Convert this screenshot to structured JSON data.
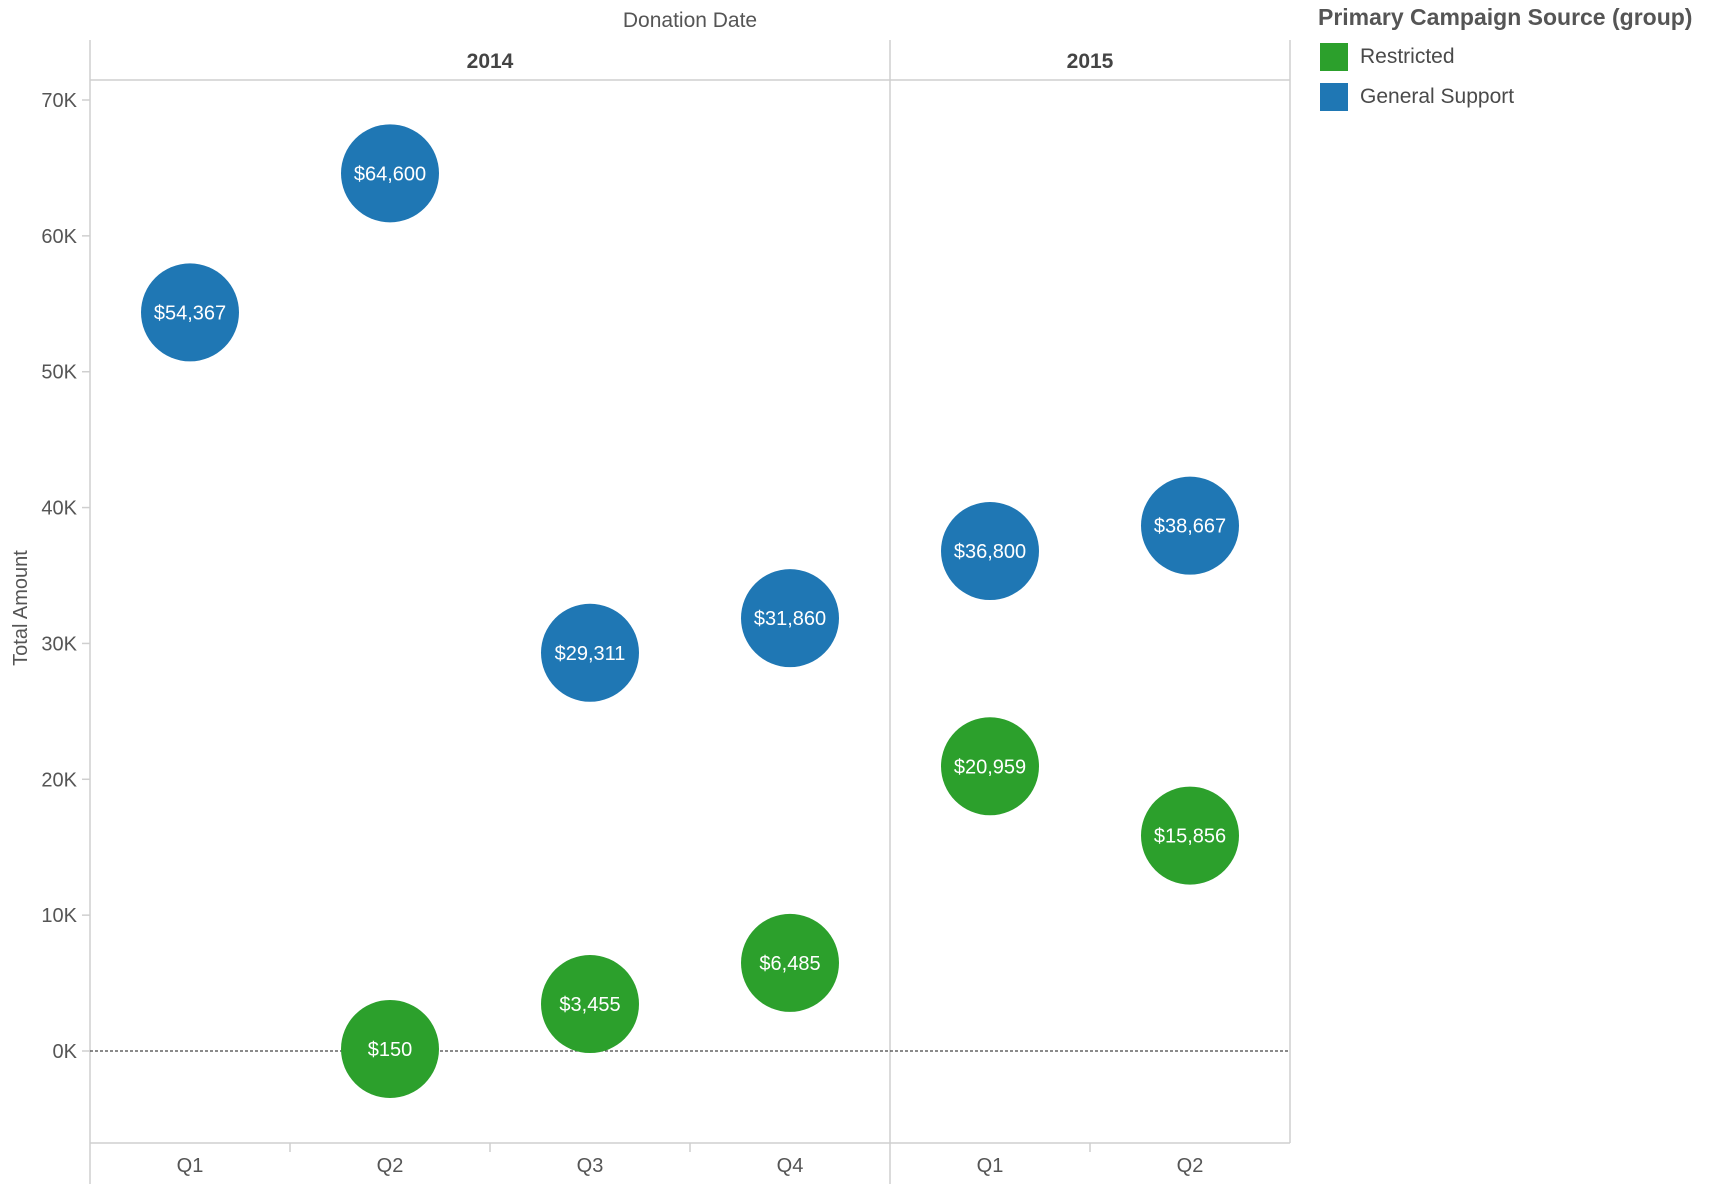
{
  "chart_data": {
    "type": "scatter",
    "title": "Donation Date",
    "xlabel": "",
    "ylabel": "Total Amount",
    "ylim": [
      -7000,
      73000
    ],
    "y_ticks": [
      "70K",
      "60K",
      "50K",
      "40K",
      "30K",
      "20K",
      "10K",
      "0K"
    ],
    "y_tick_values": [
      70000,
      60000,
      50000,
      40000,
      30000,
      20000,
      10000,
      0
    ],
    "groups": [
      {
        "label": "2014",
        "categories": [
          "Q1",
          "Q2",
          "Q3",
          "Q4"
        ]
      },
      {
        "label": "2015",
        "categories": [
          "Q1",
          "Q2"
        ]
      }
    ],
    "grid": false,
    "reference_line": 0,
    "legend": {
      "title": "Primary Campaign Source (group)",
      "placement": "top-right",
      "entries": [
        {
          "name": "Restricted",
          "color": "#2ca02c"
        },
        {
          "name": "General Support",
          "color": "#1f77b4"
        }
      ]
    },
    "series": [
      {
        "name": "General Support",
        "color": "#1f77b4",
        "points": [
          {
            "group": 0,
            "cat": 0,
            "value": 54367,
            "label": "$54,367"
          },
          {
            "group": 0,
            "cat": 1,
            "value": 64600,
            "label": "$64,600"
          },
          {
            "group": 0,
            "cat": 2,
            "value": 29311,
            "label": "$29,311"
          },
          {
            "group": 0,
            "cat": 3,
            "value": 31860,
            "label": "$31,860"
          },
          {
            "group": 1,
            "cat": 0,
            "value": 36800,
            "label": "$36,800"
          },
          {
            "group": 1,
            "cat": 1,
            "value": 38667,
            "label": "$38,667"
          }
        ]
      },
      {
        "name": "Restricted",
        "color": "#2ca02c",
        "points": [
          {
            "group": 0,
            "cat": 1,
            "value": 150,
            "label": "$150"
          },
          {
            "group": 0,
            "cat": 2,
            "value": 3455,
            "label": "$3,455"
          },
          {
            "group": 0,
            "cat": 3,
            "value": 6485,
            "label": "$6,485"
          },
          {
            "group": 1,
            "cat": 0,
            "value": 20959,
            "label": "$20,959"
          },
          {
            "group": 1,
            "cat": 1,
            "value": 15856,
            "label": "$15,856"
          }
        ]
      }
    ]
  }
}
